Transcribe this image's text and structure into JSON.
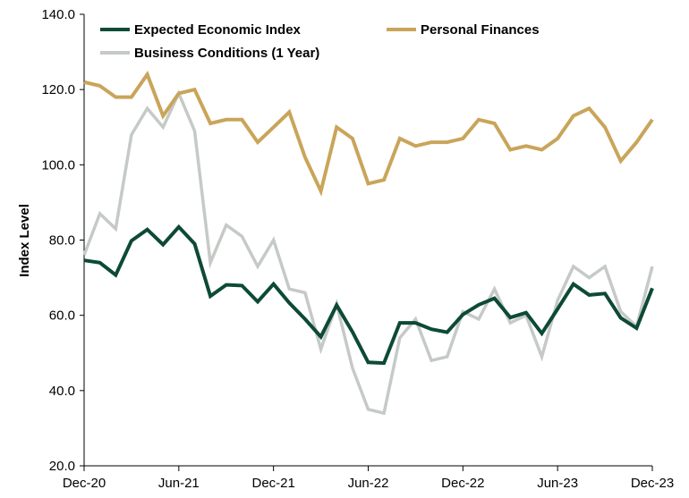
{
  "chart_data": {
    "type": "line",
    "title": "",
    "xlabel": "",
    "ylabel": "Index Level",
    "ylim": [
      20,
      140
    ],
    "yticks": [
      "20.0",
      "40.0",
      "60.0",
      "80.0",
      "100.0",
      "120.0",
      "140.0"
    ],
    "ytick_values": [
      20,
      40,
      60,
      80,
      100,
      120,
      140
    ],
    "xtick_labels": [
      "Dec-20",
      "Jun-21",
      "Dec-21",
      "Jun-22",
      "Dec-22",
      "Jun-23",
      "Dec-23"
    ],
    "xtick_positions": [
      0,
      6,
      12,
      18,
      24,
      30,
      36
    ],
    "x": [
      "Dec-20",
      "Jan-21",
      "Feb-21",
      "Mar-21",
      "Apr-21",
      "May-21",
      "Jun-21",
      "Jul-21",
      "Aug-21",
      "Sep-21",
      "Oct-21",
      "Nov-21",
      "Dec-21",
      "Jan-22",
      "Feb-22",
      "Mar-22",
      "Apr-22",
      "May-22",
      "Jun-22",
      "Jul-22",
      "Aug-22",
      "Sep-22",
      "Oct-22",
      "Nov-22",
      "Dec-22",
      "Jan-23",
      "Feb-23",
      "Mar-23",
      "Apr-23",
      "May-23",
      "Jun-23",
      "Jul-23",
      "Aug-23",
      "Sep-23",
      "Oct-23",
      "Nov-23",
      "Dec-23"
    ],
    "grid": false,
    "legend": "top",
    "series": [
      {
        "name": "Expected Economic Index",
        "color": "#0d4a36",
        "values": [
          74.6,
          74.0,
          70.7,
          79.8,
          82.8,
          78.8,
          83.5,
          79.0,
          65.1,
          68.1,
          67.9,
          63.6,
          68.3,
          63.3,
          59.0,
          54.3,
          62.7,
          55.6,
          47.5,
          47.3,
          58.0,
          58.0,
          56.3,
          55.5,
          60.2,
          62.8,
          64.5,
          59.4,
          60.7,
          55.2,
          61.7,
          68.3,
          65.4,
          65.8,
          59.3,
          56.6,
          67.2
        ]
      },
      {
        "name": "Personal Finances",
        "color": "#c9a55a",
        "values": [
          122,
          121,
          118,
          118,
          124,
          113,
          119,
          120,
          111,
          112,
          112,
          106,
          110,
          114,
          102,
          93,
          110,
          107,
          95,
          96,
          107,
          105,
          106,
          106,
          107,
          112,
          111,
          104,
          105,
          104,
          107,
          113,
          115,
          110,
          101,
          106,
          112
        ]
      },
      {
        "name": "Business Conditions (1 Year)",
        "color": "#c5cac6",
        "values": [
          76,
          87,
          83,
          108,
          115,
          110,
          119,
          109,
          74,
          84,
          81,
          73,
          80,
          67,
          66,
          51,
          63,
          46,
          35,
          34,
          54,
          59,
          48,
          49,
          61,
          59,
          67,
          58,
          60,
          49,
          64,
          73,
          70,
          73,
          61,
          57,
          73
        ]
      }
    ]
  }
}
